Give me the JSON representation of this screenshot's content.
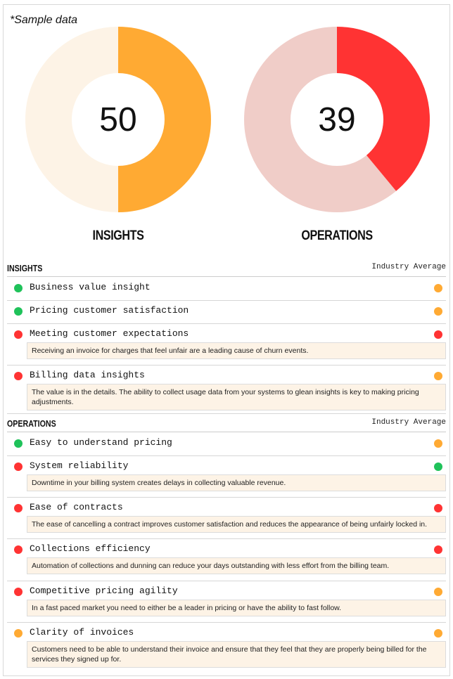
{
  "sample_note": "*Sample data",
  "colors": {
    "green": "#1fc25a",
    "red": "#ff3333",
    "orange": "#ffaa33",
    "insights_fill": "#ffaa33",
    "insights_track": "#fdf3e6",
    "operations_fill": "#ff3333",
    "operations_track": "#f0cdc8"
  },
  "gauges": [
    {
      "value": 50,
      "value_text": "50",
      "title": "INSIGHTS"
    },
    {
      "value": 39,
      "value_text": "39",
      "title": "OPERATIONS"
    }
  ],
  "insights": {
    "title": "INSIGHTS",
    "industry_label": "Industry Average",
    "items": [
      {
        "label": "Business value insight",
        "status": "green",
        "industry": "orange",
        "note": ""
      },
      {
        "label": "Pricing customer satisfaction",
        "status": "green",
        "industry": "orange",
        "note": ""
      },
      {
        "label": "Meeting customer expectations",
        "status": "red",
        "industry": "red",
        "note": "Receiving an invoice for charges that feel unfair are a leading cause of churn events."
      },
      {
        "label": "Billing data insights",
        "status": "red",
        "industry": "orange",
        "note": "The value is in the details. The ability to collect usage data from your systems to glean insights is key to making pricing adjustments."
      }
    ]
  },
  "operations": {
    "title": "OPERATIONS",
    "industry_label": "Industry Average",
    "items": [
      {
        "label": "Easy to understand pricing",
        "status": "green",
        "industry": "orange",
        "note": ""
      },
      {
        "label": "System reliability",
        "status": "red",
        "industry": "green",
        "note": "Downtime in your billing system creates delays in collecting valuable revenue."
      },
      {
        "label": "Ease of contracts",
        "status": "red",
        "industry": "red",
        "note": "The ease of cancelling a contract improves customer satisfaction and reduces the appearance of being unfairly locked in."
      },
      {
        "label": "Collections efficiency",
        "status": "red",
        "industry": "red",
        "note": "Automation of collections and dunning can reduce your days outstanding with less effort from the billing team."
      },
      {
        "label": "Competitive pricing agility",
        "status": "red",
        "industry": "orange",
        "note": "In a fast paced market you need to either be a leader in pricing or have the ability to fast follow."
      },
      {
        "label": "Clarity of invoices",
        "status": "orange",
        "industry": "orange",
        "note": "Customers need to be able to understand their invoice and ensure that they feel that they are properly being billed for the services they signed up for."
      }
    ]
  }
}
